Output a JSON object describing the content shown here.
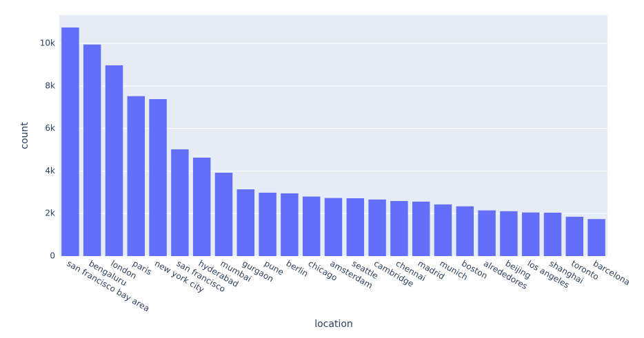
{
  "chart_data": {
    "type": "bar",
    "x_label": "location",
    "y_label": "count",
    "categories": [
      "san francisco bay area",
      "bengaluru",
      "london",
      "paris",
      "new york city",
      "san francisco",
      "hyderabad",
      "mumbai",
      "gurgaon",
      "pune",
      "berlin",
      "chicago",
      "amsterdam",
      "seattle",
      "cambridge",
      "chennai",
      "madrid",
      "munich",
      "boston",
      "alrededores",
      "beijing",
      "los angeles",
      "shanghai",
      "toronto",
      "barcelona"
    ],
    "values": [
      10750,
      9950,
      8970,
      7520,
      7380,
      5020,
      4630,
      3920,
      3140,
      2980,
      2950,
      2800,
      2730,
      2720,
      2660,
      2590,
      2560,
      2430,
      2340,
      2150,
      2110,
      2050,
      2040,
      1850,
      1740
    ],
    "color": "#636efa",
    "ylim": [
      0,
      11330
    ],
    "yticks": [
      0,
      {
        "value": 2000,
        "label": "2k"
      },
      {
        "value": 4000,
        "label": "4k"
      },
      {
        "value": 6000,
        "label": "6k"
      },
      {
        "value": 8000,
        "label": "8k"
      },
      {
        "value": 10000,
        "label": "10k"
      }
    ],
    "grid": true
  }
}
